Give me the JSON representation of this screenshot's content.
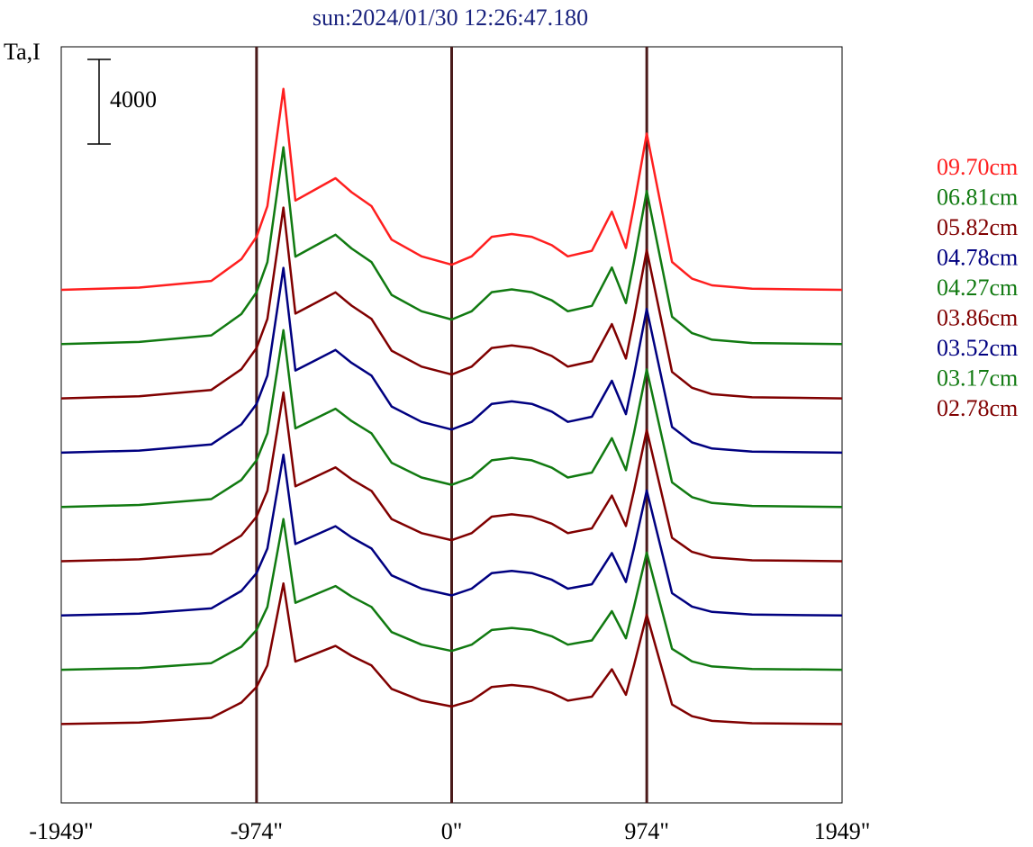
{
  "chart_data": {
    "type": "line",
    "title": "sun:2024/01/30 12:26:47.180",
    "ylabel": "Ta,I",
    "xlabel": "",
    "xlim": [
      -1949,
      1949
    ],
    "x_ticks": [
      -1949,
      -974,
      0,
      974,
      1949
    ],
    "x_tick_labels": [
      "-1949\"",
      "-974\"",
      "0\"",
      "974\"",
      "1949\""
    ],
    "vertical_lines": [
      -974,
      0,
      974
    ],
    "scale_bar": {
      "value": 4000,
      "label": "4000"
    },
    "legend_position": "right",
    "x": [
      -1949,
      -1560,
      -1200,
      -1050,
      -974,
      -920,
      -840,
      -780,
      -680,
      -580,
      -500,
      -400,
      -300,
      -150,
      0,
      100,
      200,
      300,
      400,
      500,
      580,
      700,
      800,
      870,
      910,
      974,
      1100,
      1200,
      1300,
      1500,
      1949
    ],
    "base_shape": [
      0.0,
      0.04,
      0.16,
      0.55,
      0.95,
      1.5,
      3.6,
      1.6,
      1.8,
      2.0,
      1.75,
      1.5,
      0.9,
      0.6,
      0.45,
      0.6,
      0.95,
      1.0,
      0.95,
      0.8,
      0.6,
      0.7,
      1.4,
      0.75,
      1.5,
      2.8,
      0.5,
      0.2,
      0.08,
      0.02,
      0.0
    ],
    "series": [
      {
        "name": "09.70cm",
        "color": "#ff1f1f",
        "amplitude": 1.0
      },
      {
        "name": "06.81cm",
        "color": "#117a11",
        "amplitude": 0.98
      },
      {
        "name": "05.82cm",
        "color": "#800000",
        "amplitude": 0.95
      },
      {
        "name": "04.78cm",
        "color": "#000080",
        "amplitude": 0.92
      },
      {
        "name": "04.27cm",
        "color": "#117a11",
        "amplitude": 0.88
      },
      {
        "name": "03.86cm",
        "color": "#800000",
        "amplitude": 0.84
      },
      {
        "name": "03.52cm",
        "color": "#000080",
        "amplitude": 0.8
      },
      {
        "name": "03.17cm",
        "color": "#117a11",
        "amplitude": 0.75
      },
      {
        "name": "02.78cm",
        "color": "#800000",
        "amplitude": 0.7
      }
    ]
  }
}
